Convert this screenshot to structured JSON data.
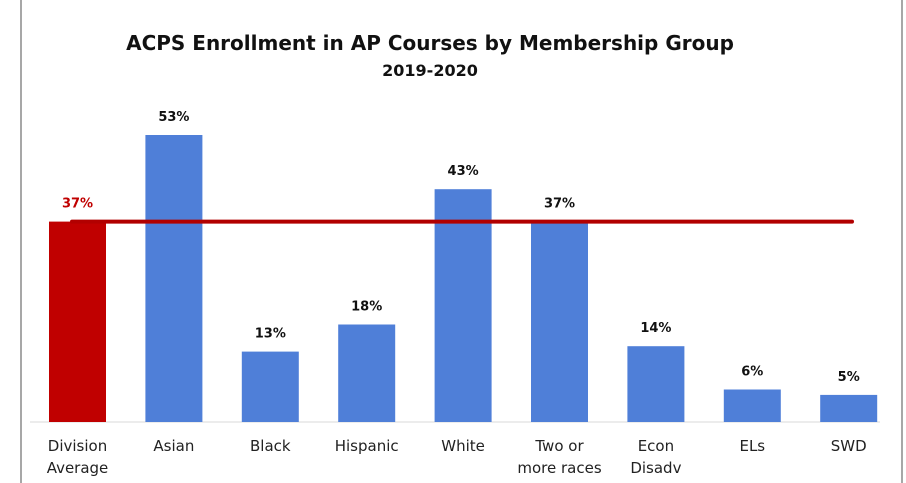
{
  "chart_data": {
    "type": "bar",
    "title": "ACPS Enrollment in AP Courses by Membership Group",
    "subtitle": "2019-2020",
    "categories": [
      "Division Average",
      "Asian",
      "Black",
      "Hispanic",
      "White",
      "Two or more races",
      "Econ Disadv",
      "ELs",
      "SWD"
    ],
    "category_lines": [
      [
        "Division",
        "Average"
      ],
      [
        "Asian"
      ],
      [
        "Black"
      ],
      [
        "Hispanic"
      ],
      [
        "White"
      ],
      [
        "Two or",
        "more races"
      ],
      [
        "Econ",
        "Disadv"
      ],
      [
        "ELs"
      ],
      [
        "SWD"
      ]
    ],
    "values": [
      37,
      53,
      13,
      18,
      43,
      37,
      14,
      6,
      5
    ],
    "value_labels": [
      "37%",
      "53%",
      "13%",
      "18%",
      "43%",
      "37%",
      "14%",
      "6%",
      "5%"
    ],
    "ylim": [
      0,
      53
    ],
    "reference_line": {
      "value": 37,
      "color": "#b20000"
    },
    "colors": {
      "highlight_bar": "#c00000",
      "bar": "#4f7fd8",
      "highlight_label": "#c00000",
      "label": "#111111",
      "frame": "#8a8a8a"
    },
    "grid": false,
    "legend": "none"
  }
}
